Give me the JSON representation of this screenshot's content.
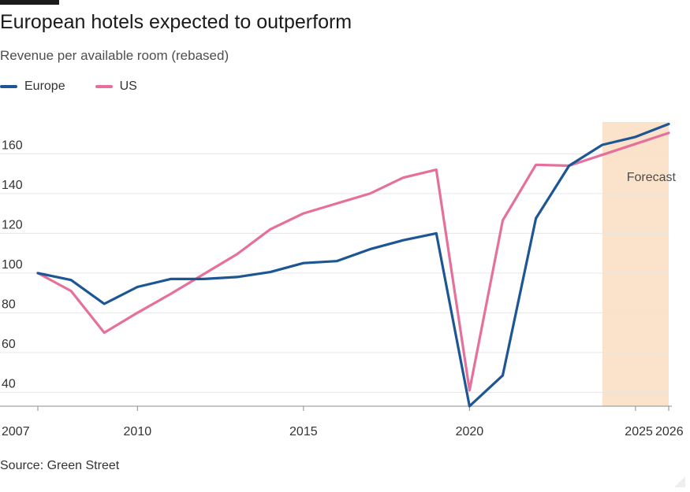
{
  "header": {
    "title": "European hotels expected to outperform",
    "subtitle": "Revenue per available room (rebased)"
  },
  "source": "Source: Green Street",
  "colors": {
    "europe": "#1d5694",
    "us": "#e5709b",
    "forecast_band": "#fbe2cb",
    "grid": "#e6e6e6",
    "axis": "#8c8c8c",
    "text": "#333333"
  },
  "chart_data": {
    "type": "line",
    "title": "European hotels expected to outperform",
    "subtitle": "Revenue per available room (rebased)",
    "x": [
      2007,
      2008,
      2009,
      2010,
      2011,
      2012,
      2013,
      2014,
      2015,
      2016,
      2017,
      2018,
      2019,
      2020,
      2021,
      2022,
      2023,
      2024,
      2025,
      2026
    ],
    "series": [
      {
        "name": "Europe",
        "color": "#1d5694",
        "values": [
          100,
          96.5,
          84.5,
          93,
          97,
          97,
          98,
          100.5,
          105,
          106,
          112,
          116.5,
          120,
          33,
          48.5,
          127.5,
          154,
          164.5,
          168.5,
          175
        ]
      },
      {
        "name": "US",
        "color": "#e5709b",
        "values": [
          100,
          91,
          70,
          80,
          89.5,
          99.5,
          109.5,
          122,
          130,
          135,
          140,
          148,
          152,
          41,
          126.5,
          154.5,
          154,
          159.5,
          165,
          170.5
        ]
      }
    ],
    "ylim": [
      33,
      176
    ],
    "y_ticks": [
      40,
      60,
      80,
      100,
      120,
      140,
      160
    ],
    "x_ticks": [
      2007,
      2010,
      2015,
      2020,
      2025,
      2026
    ],
    "x_ticks_minor": [
      2007,
      2010,
      2015,
      2020,
      2025,
      2026
    ],
    "grid": true,
    "legend": "top-left",
    "forecast": {
      "label": "Forecast",
      "from": 2024,
      "to": 2026
    },
    "xlabel": "",
    "ylabel": ""
  }
}
